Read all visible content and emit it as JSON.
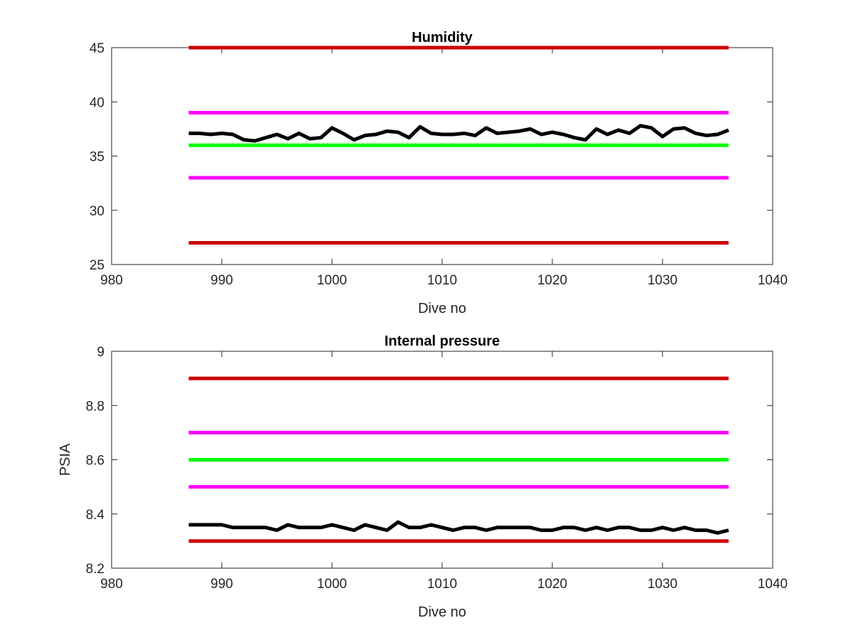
{
  "chart_data": [
    {
      "type": "line",
      "title": "Humidity",
      "xlabel": "Dive no",
      "ylabel": "",
      "xlim": [
        980,
        1040
      ],
      "ylim": [
        25,
        45
      ],
      "xticks": [
        980,
        990,
        1000,
        1010,
        1020,
        1030,
        1040
      ],
      "yticks": [
        25,
        30,
        35,
        40,
        45
      ],
      "grid": false,
      "thresholds": [
        {
          "value": 45,
          "color": "#cc0000",
          "x_range": [
            987,
            1036
          ]
        },
        {
          "value": 39,
          "color": "#ff00ff",
          "x_range": [
            987,
            1036
          ]
        },
        {
          "value": 36,
          "color": "#00ff00",
          "x_range": [
            987,
            1036
          ]
        },
        {
          "value": 33,
          "color": "#ff00ff",
          "x_range": [
            987,
            1036
          ]
        },
        {
          "value": 27,
          "color": "#cc0000",
          "x_range": [
            987,
            1036
          ]
        }
      ],
      "series": [
        {
          "color": "#000000",
          "x": [
            987,
            988,
            989,
            990,
            991,
            992,
            993,
            994,
            995,
            996,
            997,
            998,
            999,
            1000,
            1001,
            1002,
            1003,
            1004,
            1005,
            1006,
            1007,
            1008,
            1009,
            1010,
            1011,
            1012,
            1013,
            1014,
            1015,
            1016,
            1017,
            1018,
            1019,
            1020,
            1021,
            1022,
            1023,
            1024,
            1025,
            1026,
            1027,
            1028,
            1029,
            1030,
            1031,
            1032,
            1033,
            1034,
            1035,
            1036
          ],
          "y": [
            37.1,
            37.1,
            37.0,
            37.1,
            37.0,
            36.5,
            36.4,
            36.7,
            37.0,
            36.6,
            37.1,
            36.6,
            36.7,
            37.6,
            37.1,
            36.5,
            36.9,
            37.0,
            37.3,
            37.2,
            36.7,
            37.7,
            37.1,
            37.0,
            37.0,
            37.1,
            36.9,
            37.6,
            37.1,
            37.2,
            37.3,
            37.5,
            37.0,
            37.2,
            37.0,
            36.7,
            36.5,
            37.5,
            37.0,
            37.4,
            37.1,
            37.8,
            37.6,
            36.8,
            37.5,
            37.6,
            37.1,
            36.9,
            37.0,
            37.4
          ]
        }
      ]
    },
    {
      "type": "line",
      "title": "Internal pressure",
      "xlabel": "Dive no",
      "ylabel": "PSIA",
      "xlim": [
        980,
        1040
      ],
      "ylim": [
        8.2,
        9.0
      ],
      "xticks": [
        980,
        990,
        1000,
        1010,
        1020,
        1030,
        1040
      ],
      "yticks": [
        8.2,
        8.4,
        8.6,
        8.8,
        9
      ],
      "grid": false,
      "thresholds": [
        {
          "value": 8.9,
          "color": "#cc0000",
          "x_range": [
            987,
            1036
          ]
        },
        {
          "value": 8.7,
          "color": "#ff00ff",
          "x_range": [
            987,
            1036
          ]
        },
        {
          "value": 8.6,
          "color": "#00ff00",
          "x_range": [
            987,
            1036
          ]
        },
        {
          "value": 8.5,
          "color": "#ff00ff",
          "x_range": [
            987,
            1036
          ]
        },
        {
          "value": 8.3,
          "color": "#cc0000",
          "x_range": [
            987,
            1036
          ]
        }
      ],
      "series": [
        {
          "color": "#000000",
          "x": [
            987,
            988,
            989,
            990,
            991,
            992,
            993,
            994,
            995,
            996,
            997,
            998,
            999,
            1000,
            1001,
            1002,
            1003,
            1004,
            1005,
            1006,
            1007,
            1008,
            1009,
            1010,
            1011,
            1012,
            1013,
            1014,
            1015,
            1016,
            1017,
            1018,
            1019,
            1020,
            1021,
            1022,
            1023,
            1024,
            1025,
            1026,
            1027,
            1028,
            1029,
            1030,
            1031,
            1032,
            1033,
            1034,
            1035,
            1036
          ],
          "y": [
            8.36,
            8.36,
            8.36,
            8.36,
            8.35,
            8.35,
            8.35,
            8.35,
            8.34,
            8.36,
            8.35,
            8.35,
            8.35,
            8.36,
            8.35,
            8.34,
            8.36,
            8.35,
            8.34,
            8.37,
            8.35,
            8.35,
            8.36,
            8.35,
            8.34,
            8.35,
            8.35,
            8.34,
            8.35,
            8.35,
            8.35,
            8.35,
            8.34,
            8.34,
            8.35,
            8.35,
            8.34,
            8.35,
            8.34,
            8.35,
            8.35,
            8.34,
            8.34,
            8.35,
            8.34,
            8.35,
            8.34,
            8.34,
            8.33,
            8.34
          ]
        }
      ]
    }
  ]
}
